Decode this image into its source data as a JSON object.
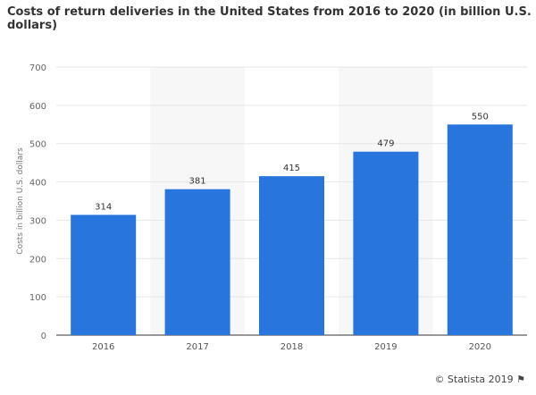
{
  "title": "Costs of return deliveries in the United States from 2016 to 2020 (in billion U.S. dollars)",
  "footer": "© Statista 2019",
  "colors": {
    "bar": "#2876dd",
    "band": "#f7f7f7",
    "grid": "#e6e6e6"
  },
  "chart_data": {
    "type": "bar",
    "title": "Costs of return deliveries in the United States from 2016 to 2020 (in billion U.S. dollars)",
    "categories": [
      "2016",
      "2017",
      "2018",
      "2019",
      "2020"
    ],
    "values": [
      314,
      381,
      415,
      479,
      550
    ],
    "xlabel": "",
    "ylabel": "Costs in billion U.S. dollars",
    "ylim": [
      0,
      700
    ],
    "yticks": [
      0,
      100,
      200,
      300,
      400,
      500,
      600,
      700
    ],
    "grid": true,
    "data_labels": true
  }
}
